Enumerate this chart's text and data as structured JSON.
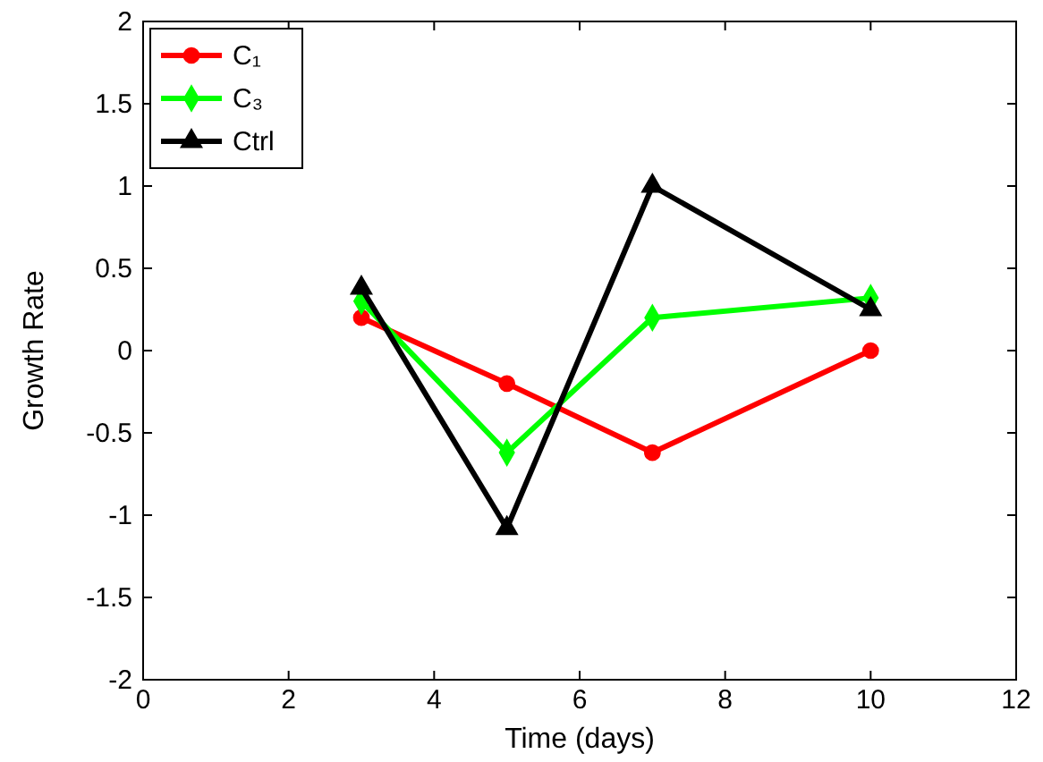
{
  "chart_data": {
    "type": "line",
    "xlabel": "Time (days)",
    "ylabel": "Growth Rate",
    "xlim": [
      0,
      12
    ],
    "xticks": [
      0,
      2,
      4,
      6,
      8,
      10,
      12
    ],
    "ylim": [
      -2,
      2
    ],
    "yticks": [
      -2,
      -1.5,
      -1,
      -0.5,
      0,
      0.5,
      1,
      1.5,
      2
    ],
    "grid": false,
    "legend": "top left",
    "line_style": "solid",
    "series": [
      {
        "name": "C₁",
        "color": "#ff0000",
        "marker": "circle",
        "x": [
          3,
          5,
          7,
          10
        ],
        "values": [
          0.2,
          -0.2,
          -0.62,
          0
        ]
      },
      {
        "name": "C₃",
        "color": "#00ff00",
        "marker": "diamond",
        "x": [
          3,
          5,
          7,
          10
        ],
        "values": [
          0.3,
          -0.62,
          0.2,
          0.32
        ]
      },
      {
        "name": "Ctrl",
        "color": "#000000",
        "marker": "triangle",
        "x": [
          3,
          5,
          7,
          10
        ],
        "values": [
          0.38,
          -1.08,
          1.0,
          0.25
        ]
      }
    ]
  }
}
